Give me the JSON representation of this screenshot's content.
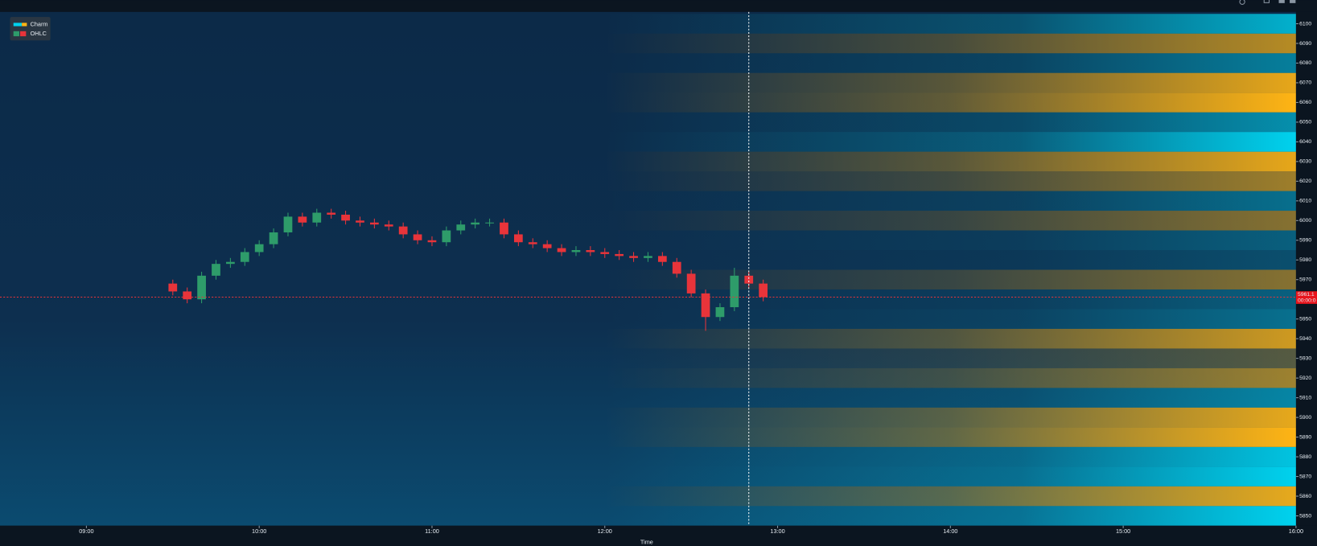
{
  "chart_data": {
    "type": "candlestick",
    "x_label": "Time",
    "xlim": [
      510,
      960
    ],
    "xticks": [
      {
        "value": 540,
        "label": "09:00"
      },
      {
        "value": 600,
        "label": "10:00"
      },
      {
        "value": 660,
        "label": "11:00"
      },
      {
        "value": 720,
        "label": "12:00"
      },
      {
        "value": 780,
        "label": "13:00"
      },
      {
        "value": 840,
        "label": "14:00"
      },
      {
        "value": 900,
        "label": "15:00"
      },
      {
        "value": 960,
        "label": "16:00"
      }
    ],
    "ylim": [
      5845,
      6106
    ],
    "yticks": [
      5850,
      5860,
      5870,
      5880,
      5890,
      5900,
      5910,
      5920,
      5930,
      5940,
      5950,
      5960,
      5970,
      5980,
      5990,
      6000,
      6010,
      6020,
      6030,
      6040,
      6050,
      6060,
      6070,
      6080,
      6090,
      6100
    ],
    "legend": "top-left",
    "last_price": 5961.1,
    "countdown": "00:00:0",
    "crosshair_x": 770,
    "series": [
      {
        "name": "Charm",
        "type": "heatmap",
        "positive_color": "#ffb414",
        "negative_color": "#00d2ee",
        "y": [
          5850,
          5860,
          5870,
          5880,
          5890,
          5900,
          5910,
          5920,
          5930,
          5940,
          5950,
          5960,
          5970,
          5980,
          5990,
          6000,
          6010,
          6020,
          6030,
          6040,
          6050,
          6060,
          6070,
          6080,
          6090,
          6100
        ],
        "values": [
          -1,
          0.9,
          -1,
          -0.9,
          1,
          0.9,
          -0.5,
          0.6,
          0.3,
          0.8,
          -0.4,
          -0.3,
          0.5,
          -0.2,
          -0.3,
          0.5,
          -0.4,
          0.6,
          0.9,
          -1,
          -0.6,
          1,
          0.9,
          -0.5,
          0.7,
          -0.8
        ]
      },
      {
        "name": "OHLC",
        "type": "candlestick",
        "up_color": "#2e9c6a",
        "down_color": "#e8343a",
        "x": [
          570,
          575,
          580,
          585,
          590,
          595,
          600,
          605,
          610,
          615,
          620,
          625,
          630,
          635,
          640,
          645,
          650,
          655,
          660,
          665,
          670,
          675,
          680,
          685,
          690,
          695,
          700,
          705,
          710,
          715,
          720,
          725,
          730,
          735,
          740,
          745,
          750,
          755,
          760,
          765,
          770,
          775
        ],
        "open": [
          5968,
          5964,
          5960,
          5972,
          5978,
          5979,
          5984,
          5988,
          5994,
          6002,
          5999,
          6004,
          6003,
          6000,
          5999,
          5998,
          5997,
          5993,
          5990,
          5989,
          5995,
          5998,
          5999,
          5999,
          5993,
          5989,
          5988,
          5986,
          5984,
          5985,
          5984,
          5983,
          5982,
          5981,
          5982,
          5979,
          5973,
          5963,
          5951,
          5956,
          5972,
          5968
        ],
        "high": [
          5970,
          5966,
          5974,
          5980,
          5981,
          5986,
          5990,
          5996,
          6004,
          6004,
          6006,
          6006,
          6005,
          6002,
          6001,
          6000,
          5999,
          5995,
          5992,
          5997,
          6000,
          6001,
          6001,
          6001,
          5995,
          5991,
          5990,
          5988,
          5987,
          5987,
          5986,
          5985,
          5984,
          5984,
          5984,
          5981,
          5975,
          5965,
          5958,
          5976,
          5974,
          5970
        ],
        "low": [
          5962,
          5958,
          5958,
          5970,
          5976,
          5977,
          5982,
          5986,
          5992,
          5997,
          5997,
          6001,
          5998,
          5997,
          5996,
          5995,
          5991,
          5988,
          5987,
          5987,
          5993,
          5996,
          5997,
          5991,
          5987,
          5986,
          5984,
          5982,
          5982,
          5982,
          5981,
          5980,
          5979,
          5979,
          5977,
          5971,
          5961,
          5944,
          5949,
          5954,
          5966,
          5959
        ],
        "close": [
          5964,
          5960,
          5972,
          5978,
          5979,
          5984,
          5988,
          5994,
          6002,
          5999,
          6004,
          6003,
          6000,
          5999,
          5998,
          5997,
          5993,
          5990,
          5989,
          5995,
          5998,
          5999,
          5999,
          5993,
          5989,
          5988,
          5986,
          5984,
          5985,
          5984,
          5983,
          5982,
          5981,
          5982,
          5979,
          5973,
          5963,
          5951,
          5956,
          5972,
          5968,
          5961.1
        ]
      }
    ]
  }
}
